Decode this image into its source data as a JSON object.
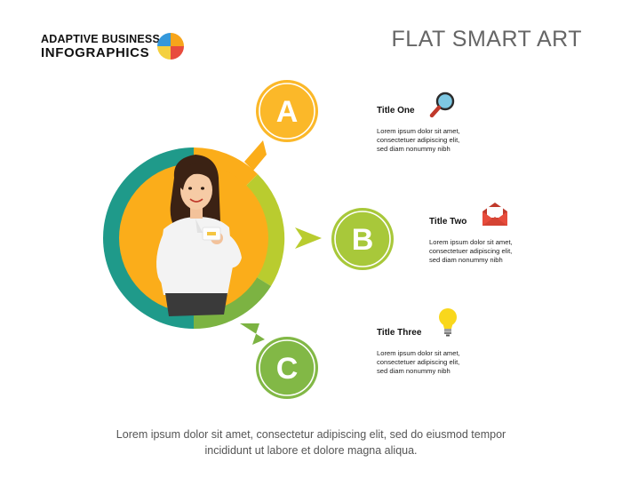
{
  "brand": {
    "line1": "ADAPTIVE BUSINESS",
    "line2": "INFOGRAPHICS"
  },
  "header": {
    "title": "FLAT SMART ART"
  },
  "colors": {
    "teal": "#1f9a8a",
    "orange": "#fbad1a",
    "lime": "#b9cc2f",
    "green": "#7cb342",
    "yellow_node": "#fbb829",
    "lime_node": "#a8c83a",
    "green_node": "#82b846"
  },
  "nodes": [
    {
      "letter": "A",
      "title": "Title One",
      "icon": "magnifier-icon",
      "text": [
        "Lorem ipsum dolor sit amet,",
        "consectetuer adipiscing elit,",
        "sed diam nonummy nibh"
      ]
    },
    {
      "letter": "B",
      "title": "Title Two",
      "icon": "envelope-icon",
      "text": [
        "Lorem ipsum dolor sit amet,",
        "consectetuer adipiscing elit,",
        "sed diam nonummy nibh"
      ]
    },
    {
      "letter": "C",
      "title": "Title Three",
      "icon": "lightbulb-icon",
      "text": [
        "Lorem ipsum dolor sit amet,",
        "consectetuer adipiscing elit,",
        "sed diam nonummy nibh"
      ]
    }
  ],
  "footer": {
    "line1": "Lorem ipsum dolor sit amet, consectetur adipiscing elit, sed do eiusmod tempor",
    "line2": "incididunt ut labore et dolore magna aliqua."
  }
}
